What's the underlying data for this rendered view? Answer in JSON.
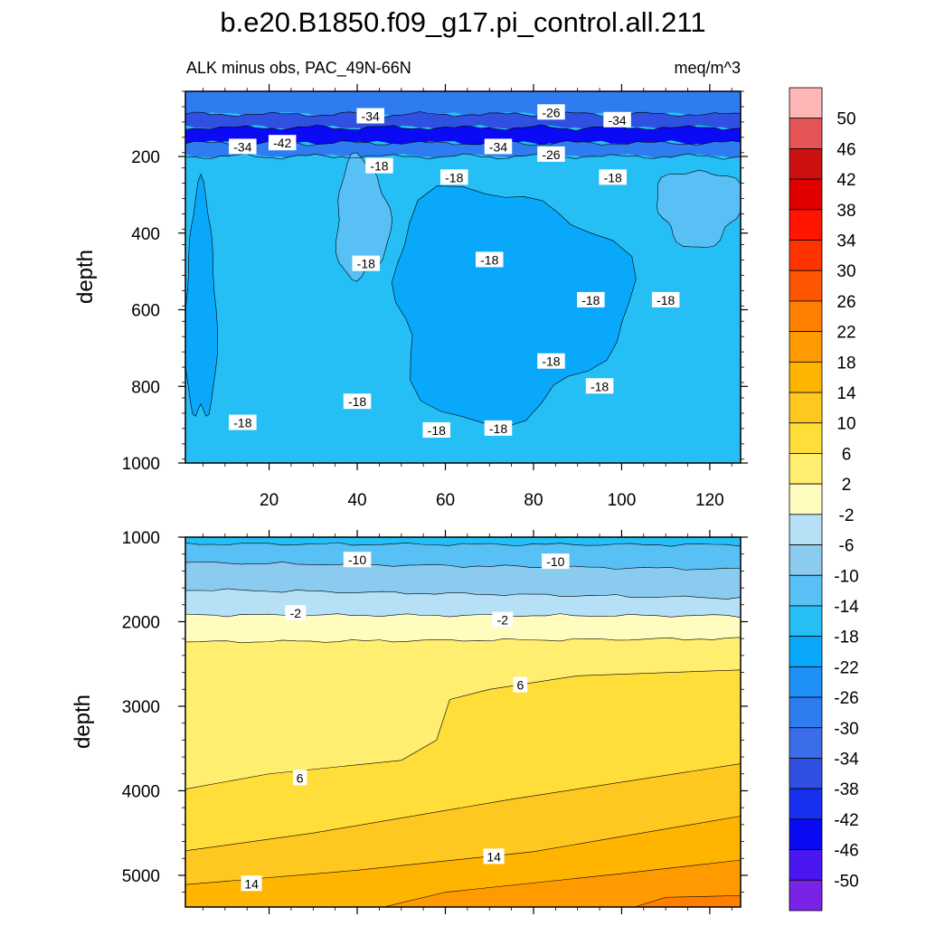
{
  "chart_data": [
    {
      "type": "heatmap",
      "subtype": "filled-contour",
      "title": "b.e20.B1850.f09_g17.pi_control.all.211",
      "subtitle_left": "ALK minus obs, PAC_49N-66N",
      "subtitle_right": "meq/m^3",
      "ylabel": "depth",
      "xlabel": "",
      "xlim": [
        1,
        127
      ],
      "ylim": [
        1000,
        30
      ],
      "y_reversed": true,
      "x_ticks": [
        "20",
        "40",
        "60",
        "80",
        "100",
        "120"
      ],
      "y_ticks": [
        "200",
        "400",
        "600",
        "800",
        "1000"
      ],
      "grid": false,
      "layers": [
        {
          "from_depth": 30,
          "to_depth": 90,
          "value": -30
        },
        {
          "from_depth": 90,
          "to_depth": 125,
          "value": -38
        },
        {
          "from_depth": 125,
          "to_depth": 165,
          "value": -46
        },
        {
          "from_depth": 165,
          "to_depth": 200,
          "value": -30
        },
        {
          "from_depth": 200,
          "to_depth": 1000,
          "value": -18
        }
      ],
      "patches": [
        {
          "x": [
            1,
            8
          ],
          "depth": [
            300,
            900
          ],
          "value": -22
        },
        {
          "x": [
            35,
            47
          ],
          "depth": [
            210,
            520
          ],
          "value": -14
        },
        {
          "x": [
            47,
            100
          ],
          "depth": [
            280,
            880
          ],
          "value": -22
        },
        {
          "x": [
            108,
            127
          ],
          "depth": [
            230,
            430
          ],
          "value": -14
        }
      ],
      "contour_labels": [
        {
          "text": "-34",
          "x": 43,
          "depth": 95
        },
        {
          "text": "-26",
          "x": 84,
          "depth": 85
        },
        {
          "text": "-34",
          "x": 14,
          "depth": 175
        },
        {
          "text": "-42",
          "x": 23,
          "depth": 165
        },
        {
          "text": "-34",
          "x": 72,
          "depth": 175
        },
        {
          "text": "-26",
          "x": 84,
          "depth": 195
        },
        {
          "text": "-34",
          "x": 99,
          "depth": 105
        },
        {
          "text": "-18",
          "x": 45,
          "depth": 225
        },
        {
          "text": "-18",
          "x": 62,
          "depth": 255
        },
        {
          "text": "-18",
          "x": 98,
          "depth": 255
        },
        {
          "text": "-18",
          "x": 42,
          "depth": 480
        },
        {
          "text": "-18",
          "x": 70,
          "depth": 470
        },
        {
          "text": "-18",
          "x": 93,
          "depth": 575
        },
        {
          "text": "-18",
          "x": 110,
          "depth": 575
        },
        {
          "text": "-18",
          "x": 84,
          "depth": 735
        },
        {
          "text": "-18",
          "x": 95,
          "depth": 800
        },
        {
          "text": "-18",
          "x": 40,
          "depth": 840
        },
        {
          "text": "-18",
          "x": 58,
          "depth": 915
        },
        {
          "text": "-18",
          "x": 72,
          "depth": 910
        },
        {
          "text": "-18",
          "x": 14,
          "depth": 895
        }
      ]
    },
    {
      "type": "heatmap",
      "subtype": "filled-contour",
      "ylabel": "depth",
      "xlabel": "",
      "xlim": [
        1,
        127
      ],
      "ylim": [
        5375,
        1000
      ],
      "y_reversed": true,
      "x_ticks": [],
      "y_ticks": [
        "1000",
        "2000",
        "3000",
        "4000",
        "5000"
      ],
      "grid": false,
      "contours": [
        {
          "level": -14,
          "depth_left": 1080,
          "depth_right": 1090
        },
        {
          "level": -10,
          "depth_left": 1300,
          "depth_right": 1380
        },
        {
          "level": -6,
          "depth_left": 1620,
          "depth_right": 1720
        },
        {
          "level": -2,
          "depth_left": 1920,
          "depth_right": 1930
        },
        {
          "level": 2,
          "depth_left": 2240,
          "depth_right": 2200
        },
        {
          "level": 6,
          "points": [
            [
              1,
              3980
            ],
            [
              20,
              3800
            ],
            [
              50,
              3640
            ],
            [
              58,
              3400
            ],
            [
              61,
              2920
            ],
            [
              70,
              2800
            ],
            [
              90,
              2640
            ],
            [
              127,
              2570
            ]
          ]
        },
        {
          "level": 10,
          "points": [
            [
              1,
              4710
            ],
            [
              30,
              4500
            ],
            [
              75,
              4100
            ],
            [
              127,
              3680
            ]
          ]
        },
        {
          "level": 14,
          "points": [
            [
              1,
              5110
            ],
            [
              40,
              4940
            ],
            [
              80,
              4720
            ],
            [
              127,
              4300
            ]
          ]
        },
        {
          "level": 18,
          "points": [
            [
              46,
              5375
            ],
            [
              60,
              5200
            ],
            [
              100,
              4980
            ],
            [
              127,
              4820
            ]
          ]
        },
        {
          "level": 22,
          "points": [
            [
              103,
              5375
            ],
            [
              110,
              5260
            ],
            [
              127,
              5240
            ]
          ]
        }
      ],
      "contour_labels": [
        {
          "text": "-10",
          "x": 40,
          "depth": 1270
        },
        {
          "text": "-10",
          "x": 85,
          "depth": 1290
        },
        {
          "text": "-2",
          "x": 26,
          "depth": 1900
        },
        {
          "text": "-2",
          "x": 73,
          "depth": 1980
        },
        {
          "text": "6",
          "x": 77,
          "depth": 2750
        },
        {
          "text": "6",
          "x": 27,
          "depth": 3850
        },
        {
          "text": "14",
          "x": 71,
          "depth": 4780
        },
        {
          "text": "14",
          "x": 16,
          "depth": 5100
        }
      ]
    },
    {
      "type": "colorbar",
      "levels": [
        "50",
        "46",
        "42",
        "38",
        "34",
        "30",
        "26",
        "22",
        "18",
        "14",
        "10",
        "6",
        "2",
        "-2",
        "-6",
        "-10",
        "-14",
        "-18",
        "-22",
        "-26",
        "-30",
        "-34",
        "-38",
        "-42",
        "-46",
        "-50"
      ],
      "colors": [
        "#ffb6b6",
        "#e65555",
        "#cc1111",
        "#e00000",
        "#ff1500",
        "#ff3300",
        "#ff5500",
        "#ff8000",
        "#ff9a00",
        "#ffb400",
        "#ffc820",
        "#ffde3a",
        "#ffee70",
        "#fffcc0",
        "#b6e0f5",
        "#8ccbf0",
        "#58c0f5",
        "#26bff5",
        "#0aa8fa",
        "#1e90f8",
        "#2e7cf0",
        "#3a6ee8",
        "#3050e2",
        "#1830f0",
        "#0a0af5",
        "#4a16f2",
        "#7a22e8"
      ]
    }
  ]
}
